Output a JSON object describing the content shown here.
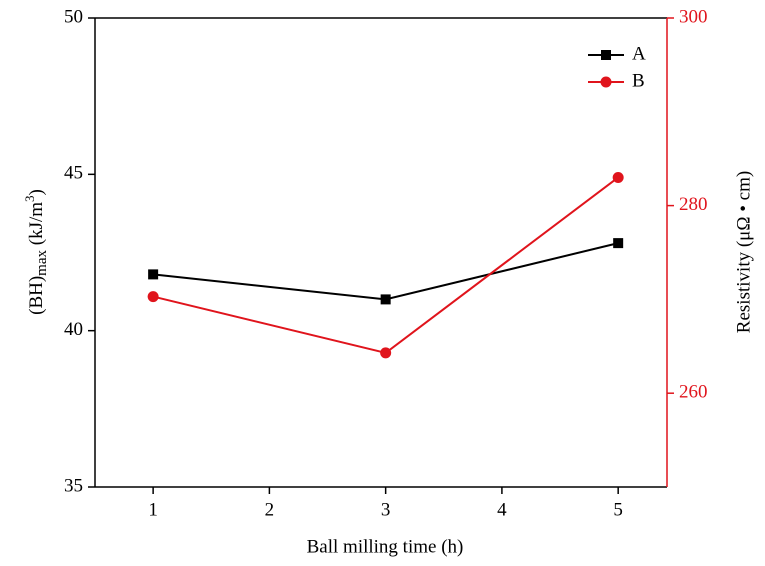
{
  "chart_data": {
    "type": "line",
    "xlabel": "Ball milling time (h)",
    "ylabel": [
      "(BH)",
      "max",
      " (kJ/m",
      "3",
      ")"
    ],
    "y2label": "Resistivity (μΩ • cm)",
    "xlim": [
      0.5,
      5.42
    ],
    "xticks": [
      1,
      2,
      3,
      4,
      5
    ],
    "ylim": [
      35,
      50
    ],
    "yticks": [
      35,
      40,
      45,
      50
    ],
    "y2lim": [
      250,
      300
    ],
    "y2ticks": [
      260,
      280,
      300
    ],
    "y2color": "#e0141c",
    "legend": "upper right",
    "series": [
      {
        "name": "A",
        "color": "#000000",
        "marker": "square",
        "x": [
          1,
          3,
          5
        ],
        "values": [
          41.8,
          41.0,
          42.8
        ]
      },
      {
        "name": "B",
        "color": "#e0141c",
        "marker": "circle",
        "axis": "y2",
        "x": [
          1,
          3,
          5
        ],
        "values": [
          270.3,
          264.3,
          283.0
        ]
      }
    ]
  }
}
